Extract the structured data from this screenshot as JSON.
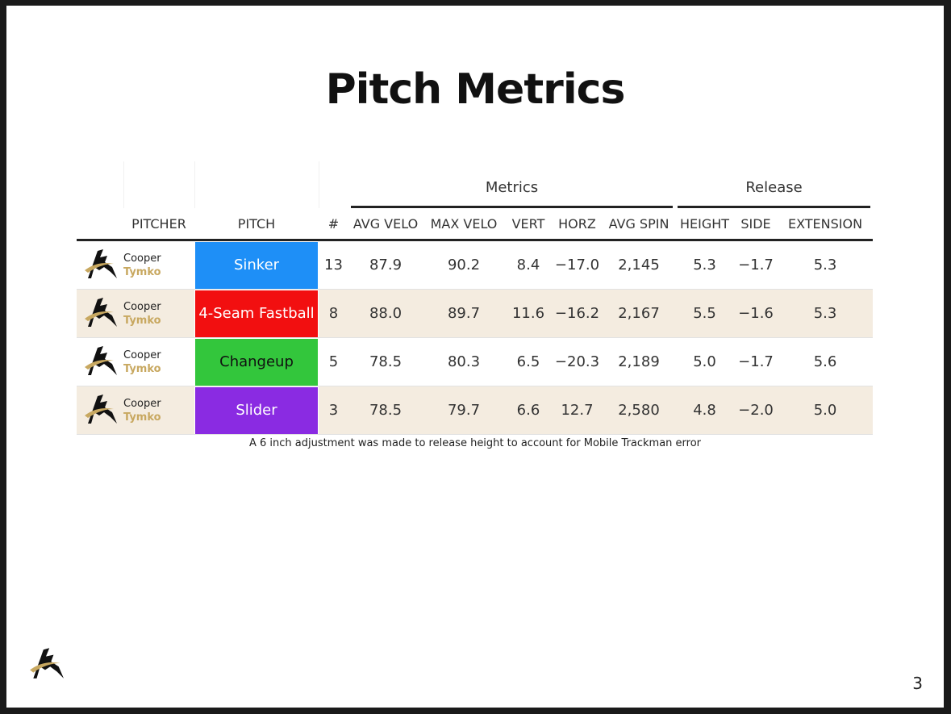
{
  "slide": {
    "title": "Pitch Metrics",
    "page_number": "3",
    "note": "A 6 inch adjustment was made to release height to account for Mobile Trackman error"
  },
  "table": {
    "groups": {
      "metrics": "Metrics",
      "release": "Release"
    },
    "columns": {
      "pitcher": "PITCHER",
      "pitch": "PITCH",
      "count": "#",
      "avg_velo": "AVG VELO",
      "max_velo": "MAX VELO",
      "vert": "VERT",
      "horz": "HORZ",
      "avg_spin": "AVG SPIN",
      "height": "HEIGHT",
      "side": "SIDE",
      "extension": "EXTENSION"
    },
    "rows": [
      {
        "first": "Cooper",
        "last": "Tymko",
        "pitch": "Sinker",
        "color": "#1e8ff7",
        "count": "13",
        "avg_velo": "87.9",
        "max_velo": "90.2",
        "vert": "8.4",
        "horz": "−17.0",
        "avg_spin": "2,145",
        "height": "5.3",
        "side": "−1.7",
        "extension": "5.3"
      },
      {
        "first": "Cooper",
        "last": "Tymko",
        "pitch": "4-Seam Fastball",
        "color": "#f20f10",
        "count": "8",
        "avg_velo": "88.0",
        "max_velo": "89.7",
        "vert": "11.6",
        "horz": "−16.2",
        "avg_spin": "2,167",
        "height": "5.5",
        "side": "−1.6",
        "extension": "5.3"
      },
      {
        "first": "Cooper",
        "last": "Tymko",
        "pitch": "Changeup",
        "color": "#33c63c",
        "count": "5",
        "avg_velo": "78.5",
        "max_velo": "80.3",
        "vert": "6.5",
        "horz": "−20.3",
        "avg_spin": "2,189",
        "height": "5.0",
        "side": "−1.7",
        "extension": "5.6"
      },
      {
        "first": "Cooper",
        "last": "Tymko",
        "pitch": "Slider",
        "color": "#8a2be2",
        "count": "3",
        "avg_velo": "78.5",
        "max_velo": "79.7",
        "vert": "6.6",
        "horz": "12.7",
        "avg_spin": "2,580",
        "height": "4.8",
        "side": "−2.0",
        "extension": "5.0"
      }
    ]
  },
  "icons": {
    "logo": "team-logo-icon"
  }
}
